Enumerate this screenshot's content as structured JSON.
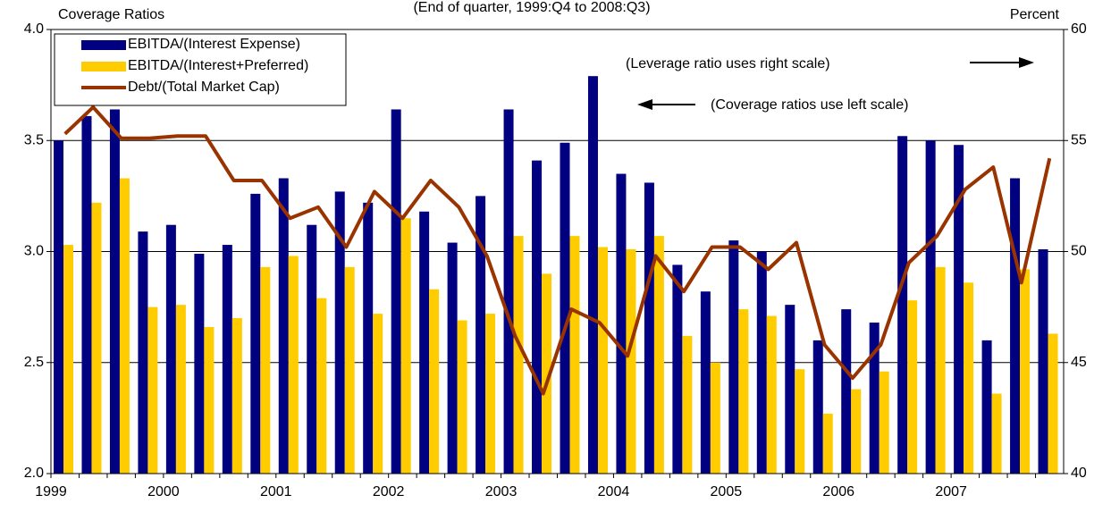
{
  "chart_data": {
    "type": "bar_line",
    "title": "(End of quarter, 1999:Q4 to 2008:Q3)",
    "ylabel": "Coverage Ratios",
    "y2label": "Percent",
    "annotations": [
      "(Leverage ratio uses right scale)",
      "(Coverage ratios use left scale)"
    ],
    "categories": [
      "1999",
      null,
      null,
      null,
      "2000",
      null,
      null,
      null,
      "2001",
      null,
      null,
      null,
      "2002",
      null,
      null,
      null,
      "2003",
      null,
      null,
      null,
      "2004",
      null,
      null,
      null,
      "2005",
      null,
      null,
      null,
      "2006",
      null,
      null,
      null,
      "2007",
      null,
      null,
      null
    ],
    "series": [
      {
        "name": "EBITDA/(Interest Expense)",
        "color": "#000080",
        "kind": "bar",
        "values": [
          3.5,
          3.61,
          3.64,
          3.09,
          3.12,
          2.99,
          3.03,
          3.26,
          3.33,
          3.12,
          3.27,
          3.22,
          3.64,
          3.18,
          3.04,
          3.25,
          3.64,
          3.41,
          3.49,
          3.79,
          3.35,
          3.31,
          2.94,
          2.82,
          3.05,
          3.0,
          2.76,
          2.6,
          2.74,
          2.68,
          3.52,
          3.5,
          3.48,
          2.6,
          3.33,
          3.01
        ]
      },
      {
        "name": "EBITDA/(Interest+Preferred)",
        "color": "#ffcc00",
        "kind": "bar",
        "values": [
          3.03,
          3.22,
          3.33,
          2.75,
          2.76,
          2.66,
          2.7,
          2.93,
          2.98,
          2.79,
          2.93,
          2.72,
          3.15,
          2.83,
          2.69,
          2.72,
          3.07,
          2.9,
          3.07,
          3.02,
          3.01,
          3.07,
          2.62,
          2.5,
          2.74,
          2.71,
          2.47,
          2.27,
          2.38,
          2.46,
          2.78,
          2.93,
          2.86,
          2.36,
          2.92,
          2.63
        ]
      },
      {
        "name": "Debt/(Total Market Cap)",
        "color": "#993300",
        "kind": "line",
        "axis": "y2",
        "values": [
          55.3,
          56.5,
          55.1,
          55.1,
          55.2,
          55.2,
          53.2,
          53.2,
          51.5,
          52.0,
          50.2,
          52.7,
          51.5,
          53.2,
          52.0,
          49.8,
          46.2,
          43.6,
          47.4,
          46.8,
          45.3,
          49.8,
          48.2,
          50.2,
          50.2,
          49.2,
          50.4,
          45.8,
          44.3,
          45.8,
          49.5,
          50.7,
          52.8,
          53.8,
          48.6,
          54.2
        ]
      }
    ],
    "ylim": [
      2,
      4
    ],
    "yticks": [
      {
        "value": 2,
        "label": "2.0"
      },
      {
        "value": 2.5,
        "label": "2.5"
      },
      {
        "value": 3,
        "label": "3.0"
      },
      {
        "value": 3.5,
        "label": "3.5"
      },
      {
        "value": 4,
        "label": "4.0"
      }
    ],
    "y2lim": [
      40,
      60
    ],
    "y2ticks": [
      40,
      45,
      50,
      55,
      60
    ],
    "grid": true,
    "legend": "upper-left"
  }
}
